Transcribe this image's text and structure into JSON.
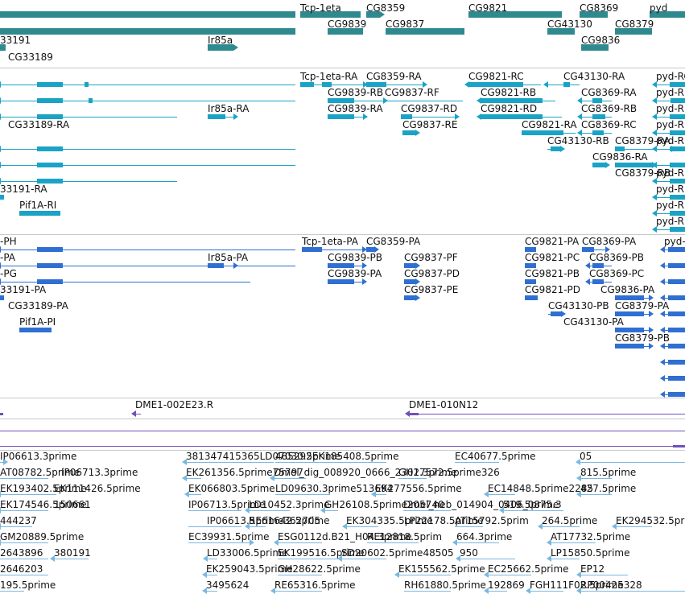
{
  "colors": {
    "gene": "#2f8a8f",
    "transcript": "#1aa3c6",
    "cds": "#2f6fd2",
    "clone": "#7050b8",
    "est": "#7ab8e0",
    "separator": "#c8c8c8",
    "text": "#111111"
  },
  "tracks": [
    {
      "id": "genes",
      "glyph": "gene",
      "labels": [
        "Tcp-1eta",
        "CG8359",
        "CG9821",
        "CG8369",
        "pyd",
        "CG9839",
        "CG9837",
        "CG43130",
        "CG8379",
        "33191",
        "Ir85a",
        "CG9836",
        "CG33189"
      ]
    },
    {
      "id": "transcripts",
      "glyph": "transcript",
      "labels": [
        "Tcp-1eta-RA",
        "CG8359-RA",
        "CG9821-RC",
        "CG43130-RA",
        "pyd-RC",
        "CG9839-RB",
        "CG9837-RF",
        "CG9821-RB",
        "CG8369-RA",
        "pyd-RB",
        "Ir85a-RA",
        "CG9839-RA",
        "CG9837-RD",
        "CG9821-RD",
        "CG8369-RB",
        "pyd-R",
        "CG33189-RA",
        "CG9837-RE",
        "CG9821-RA",
        "CG8369-RC",
        "pyd-R",
        "CG43130-RB",
        "CG8379-RA",
        "pyd-R",
        "CG9836-RA",
        "CG8379-RB",
        "pyd-R",
        "33191-RA",
        "pyd-R",
        "Pif1A-RI",
        "pyd-R",
        "pyd-R"
      ]
    },
    {
      "id": "proteins",
      "glyph": "cds",
      "labels": [
        "-PH",
        "Tcp-1eta-PA",
        "CG8359-PA",
        "CG9821-PA",
        "CG8369-PA",
        "pyd-",
        "-PA",
        "Ir85a-PA",
        "CG9839-PB",
        "CG9837-PF",
        "CG9821-PC",
        "CG8369-PB",
        "-PG",
        "CG9839-PA",
        "CG9837-PD",
        "CG9821-PB",
        "CG8369-PC",
        "33191-PA",
        "CG9837-PE",
        "CG9821-PD",
        "CG9836-PA",
        "CG33189-PA",
        "CG43130-PB",
        "CG8379-PA",
        "Pif1A-PI",
        "CG43130-PA",
        "CG8379-PB"
      ]
    },
    {
      "id": "clones",
      "glyph": "clone",
      "labels": [
        "DME1-002E23.R",
        "DME1-010N12"
      ]
    },
    {
      "id": "ests",
      "glyph": "est",
      "labels": [
        "IP06613.3prime",
        "381347415365LD07030.5prime",
        "485292EK185408.5prime",
        "EC40677.5prime",
        "05",
        "AT08782.5prime",
        "IP06713.3prime",
        "EK261356.5prime75797",
        "Dmel_dig_008920_0666_2302.3prime",
        "GH17572.5prime326",
        "815.5prime",
        "EK193402.5prime",
        "EK111426.5prime",
        "EK066803.5prime",
        "LD09630.3prime513694",
        "EK277556.5prime",
        "EC14848.5prime2285",
        "427.5prime",
        "EK174546.5prime",
        "150661",
        "IP06713.5prime",
        "LD10452.3prime",
        "GH26108.5prime205740",
        "Dmel_neb_014904_0406_0875.3",
        "519.5prime",
        "444237",
        "IP06613.5prime362705",
        "RE61642.5prime",
        "EK304335.5prime",
        "LP22178.5prime",
        "AT15792.5prim",
        "264.5prime",
        "EK294532.5prime",
        "GM20889.5prime",
        "EC39931.5prime",
        "ESG0112d.B21_H04.3prime",
        "RE12818.5prim",
        "664.3prime",
        "AT17732.5prime",
        "2643896",
        "380191",
        "LD33006.5prime",
        "EK199516.5prime",
        "SD20602.5prime48505",
        "950",
        "LP15850.5prime",
        "2646203",
        "EK259043.5prime",
        "GH28622.5prime",
        "EK155562.5prime",
        "EC25662.5prime",
        "EP12",
        "195.5prime",
        "3495624",
        "RE65316.5prime",
        "RH61880.5prime",
        "192869",
        "FGH111F02.5prime",
        "RP00425328"
      ]
    }
  ]
}
